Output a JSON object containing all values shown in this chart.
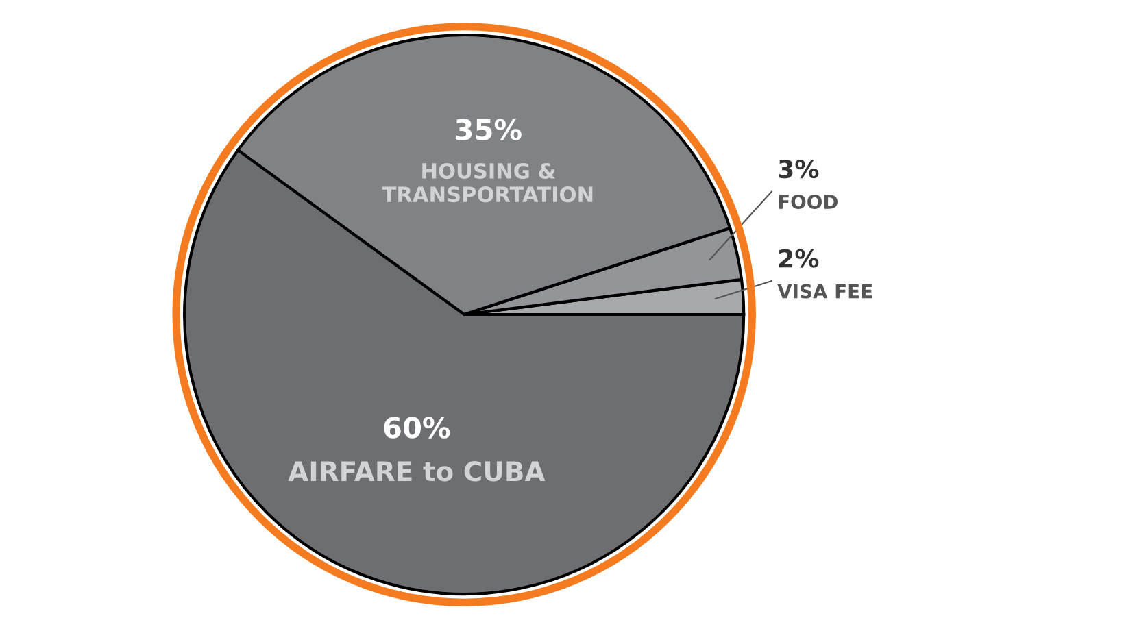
{
  "chart_data": {
    "type": "pie",
    "categories": [
      "VISA FEE",
      "FOOD",
      "HOUSING & TRANSPORTATION",
      "AIRFARE to CUBA"
    ],
    "values": [
      2,
      3,
      35,
      60
    ],
    "value_labels": [
      "2%",
      "3%",
      "35%",
      "60%"
    ],
    "colors": [
      "#a7a9ac",
      "#939598",
      "#808285",
      "#6d6e71"
    ],
    "legend": false
  }
}
